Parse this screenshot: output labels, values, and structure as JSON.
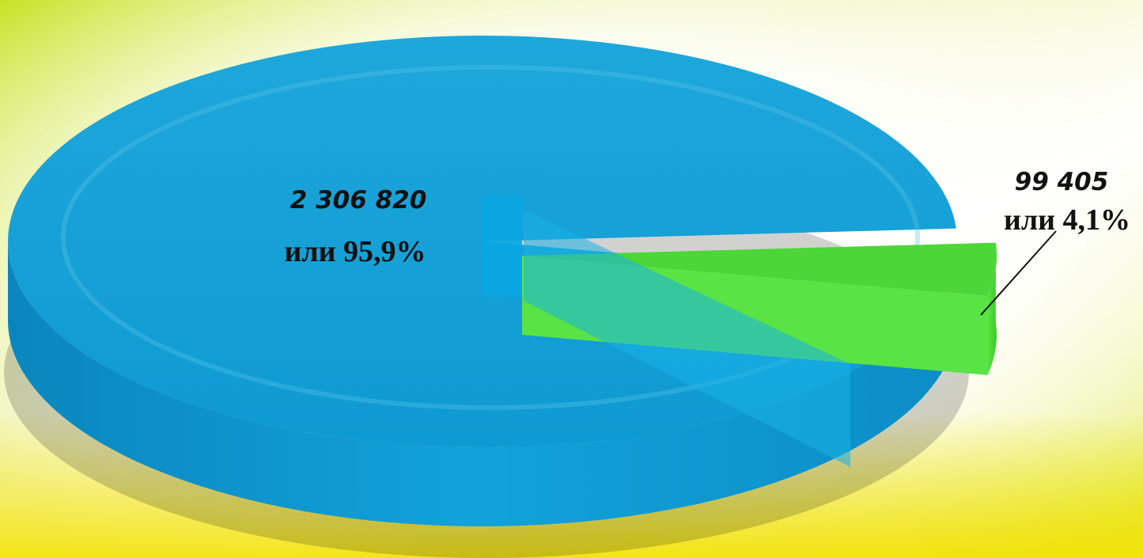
{
  "chart_data": {
    "type": "pie",
    "style": "3d-exploded",
    "slices": [
      {
        "value": 2306820,
        "percent": 95.9,
        "value_label": "2 306 820",
        "percent_label": "или 95,9%",
        "color": "#12A4DA"
      },
      {
        "value": 99405,
        "percent": 4.1,
        "value_label": "99 405",
        "percent_label": "или 4,1%",
        "color": "#4CD637",
        "exploded": true
      }
    ],
    "legend": "none",
    "label_placement": "small slice labeled outside with a leader line"
  },
  "background": {
    "colors": [
      "#C7E31A",
      "#EDEA3A",
      "#FFFFFF"
    ]
  }
}
